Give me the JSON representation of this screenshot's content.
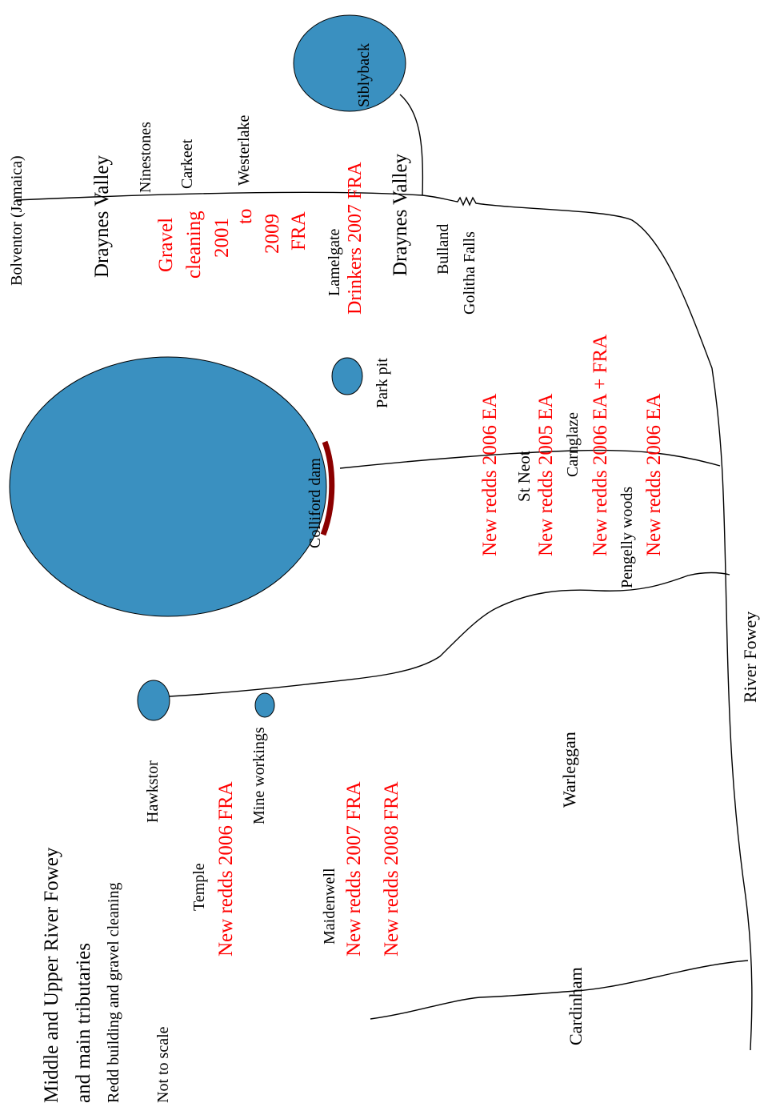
{
  "colors": {
    "lake": "#3a90c0",
    "red_label": "#ff0000",
    "dam": "#8b0000",
    "line": "#000000"
  },
  "title": {
    "line1": "Middle and Upper River Fowey",
    "line2": "and main tributaries",
    "subtitle": "Redd building and gravel cleaning",
    "scale_note": "Not to scale"
  },
  "lakes": {
    "siblyback": "Siblyback",
    "colliford_dam": "Colliford dam",
    "park_pit": "Park pit",
    "hawkstor": "Hawkstor",
    "mine_workings": "Mine workings"
  },
  "places": {
    "bolventor": "Bolventor (Jamaica)",
    "draynes_valley_1": "Draynes Valley",
    "ninestones": "Ninestones",
    "carkeet": "Carkeet",
    "westerlake": "Westerlake",
    "lamelgate": "Lamelgate",
    "draynes_valley_2": "Draynes Valley",
    "bulland": "Bulland",
    "golitha_falls": "Golitha Falls",
    "st_neot": "St Neot",
    "carnglaze": "Carnglaze",
    "pengelly_woods": "Pengelly woods",
    "river_fowey": "River Fowey",
    "warleggan": "Warleggan",
    "temple": "Temple",
    "maidenwell": "Maidenwell",
    "cardinham": "Cardinham"
  },
  "works": {
    "gravel_1": "Gravel",
    "gravel_2": "cleaning",
    "gravel_3": "2001",
    "gravel_4": "to",
    "gravel_5": "2009",
    "gravel_6": "FRA",
    "drinkers": "Drinkers 2007 FRA",
    "st_neot_1": "New redds 2006 EA",
    "st_neot_2": "New redds 2005 EA",
    "carnglaze_1": "New redds 2006 EA + FRA",
    "pengelly_1": "New redds 2006 EA",
    "temple_1": "New redds 2006 FRA",
    "maidenwell_1": "New redds 2007 FRA",
    "maidenwell_2": "New redds 2008 FRA"
  }
}
